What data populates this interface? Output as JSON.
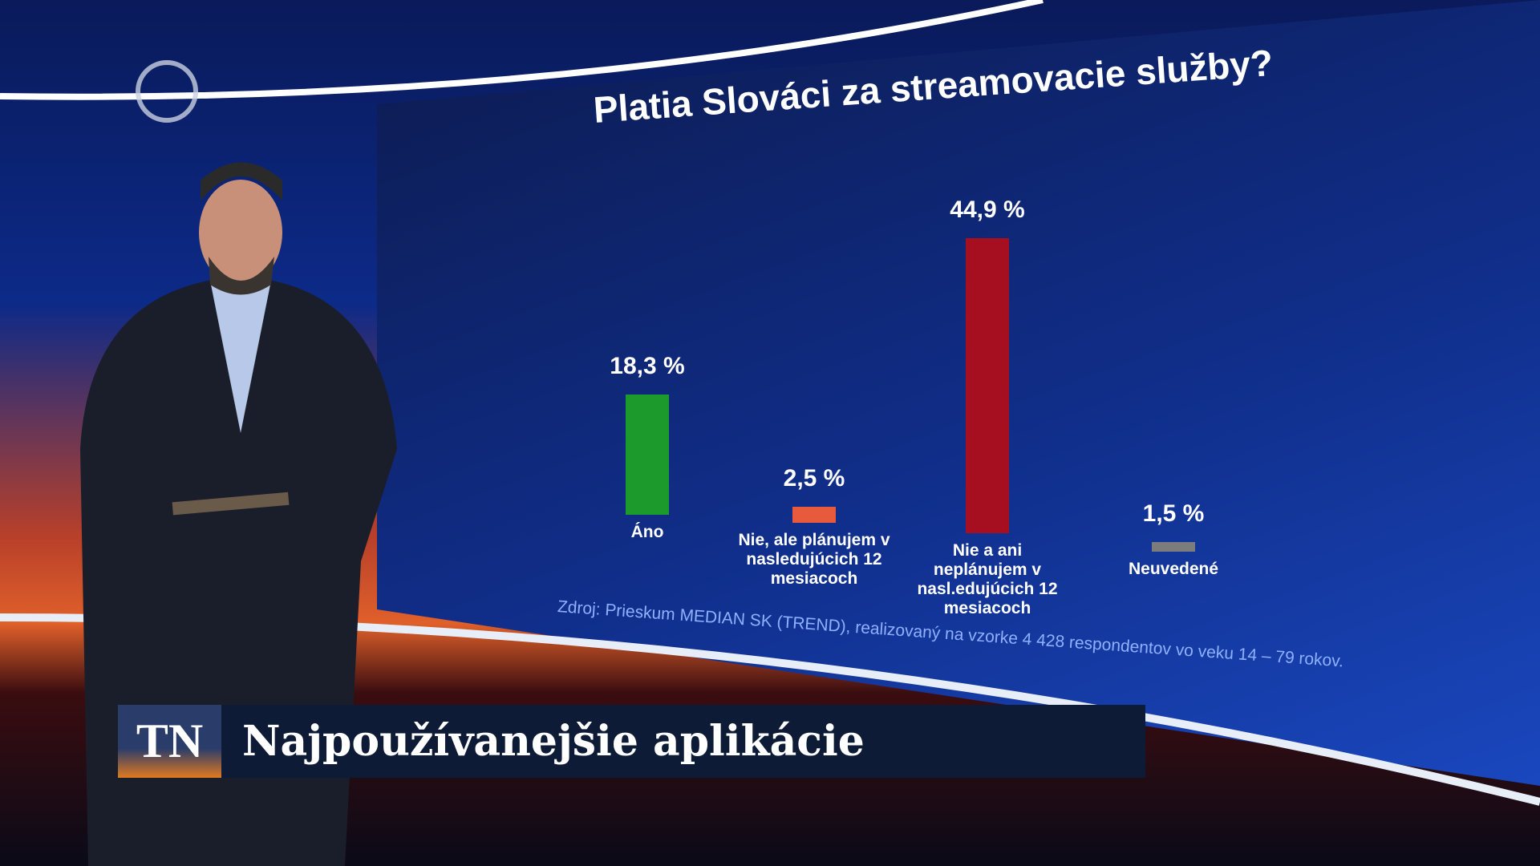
{
  "chart_data": {
    "type": "bar",
    "title": "Platia Slováci za streamovacie služby?",
    "categories": [
      "Áno",
      "Nie, ale plánujem v nasledujúcich 12 mesiacoch",
      "Nie a ani neplánujem v nasl.edujúcich 12 mesiacoch",
      "Neuvedené"
    ],
    "values": [
      18.3,
      2.5,
      44.9,
      1.5
    ],
    "value_labels": [
      "18,3 %",
      "2,5 %",
      "44,9 %",
      "1,5 %"
    ],
    "colors": [
      "#1c9a2c",
      "#e85a3c",
      "#a50f1f",
      "#7c7c7c"
    ],
    "source": "Zdroj: Prieskum MEDIAN SK (TREND), realizovaný na vzorke 4 428 respondentov vo veku 14 – 79 rokov."
  },
  "lower_third": {
    "logo": "TN",
    "headline": "Najpoužívanejšie aplikácie"
  }
}
